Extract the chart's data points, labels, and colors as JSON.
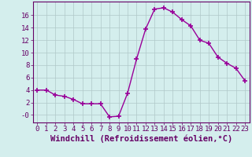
{
  "x": [
    0,
    1,
    2,
    3,
    4,
    5,
    6,
    7,
    8,
    9,
    10,
    11,
    12,
    13,
    14,
    15,
    16,
    17,
    18,
    19,
    20,
    21,
    22,
    23
  ],
  "y": [
    4.0,
    4.0,
    3.2,
    3.0,
    2.5,
    1.8,
    1.8,
    1.8,
    -0.3,
    -0.2,
    3.5,
    9.0,
    13.8,
    17.0,
    17.2,
    16.5,
    15.3,
    14.3,
    12.0,
    11.5,
    9.3,
    8.3,
    7.5,
    5.5
  ],
  "line_color": "#990099",
  "marker": "+",
  "marker_size": 4,
  "marker_lw": 1.2,
  "bg_color": "#d4eeed",
  "grid_color": "#b0c8c8",
  "xlabel": "Windchill (Refroidissement éolien,°C)",
  "yticks": [
    0,
    2,
    4,
    6,
    8,
    10,
    12,
    14,
    16
  ],
  "xticks": [
    0,
    1,
    2,
    3,
    4,
    5,
    6,
    7,
    8,
    9,
    10,
    11,
    12,
    13,
    14,
    15,
    16,
    17,
    18,
    19,
    20,
    21,
    22,
    23
  ],
  "ylim": [
    -1.2,
    18.2
  ],
  "xlim": [
    -0.5,
    23.5
  ],
  "label_color": "#660066",
  "tick_fontsize": 6.5,
  "xlabel_fontsize": 7.5,
  "linewidth": 1.0
}
